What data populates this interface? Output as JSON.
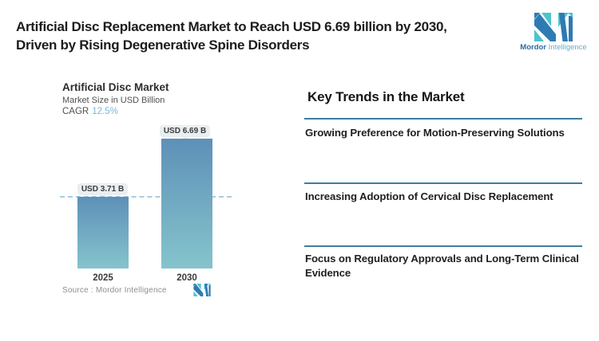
{
  "header": {
    "title_line1": "Artificial Disc Replacement Market to Reach USD 6.69 billion by 2030,",
    "title_line2": "Driven by Rising Degenerative Spine Disorders"
  },
  "logo": {
    "text_primary": "Mordor",
    "text_secondary": "Intelligence",
    "blue": "#2e7bb4",
    "teal": "#4cc3d0"
  },
  "chart": {
    "title": "Artificial Disc Market",
    "subtitle": "Market Size in USD Billion",
    "cagr_label": "CAGR",
    "cagr_value": "12.5%",
    "source": "Source :  Mordor Intelligence"
  },
  "chart_data": {
    "type": "bar",
    "title": "Artificial Disc Market",
    "ylabel": "Market Size in USD Billion",
    "categories": [
      "2025",
      "2030"
    ],
    "values": [
      3.71,
      6.69
    ],
    "value_labels": [
      "USD 3.71 B",
      "USD 6.69 B"
    ],
    "cagr": "12.5%",
    "ylim": [
      0,
      6.69
    ],
    "grid": false,
    "legend": false,
    "baseline_dashed_at": 3.71,
    "bar_gradient_top": "#5e90b8",
    "bar_gradient_bottom": "#85c4cc",
    "dashed_line_color": "#a9cddd",
    "label_pill_bg": "#e9eef1"
  },
  "trends": {
    "heading": "Key Trends in the Market",
    "items": [
      "Growing Preference for Motion-Preserving Solutions",
      "Increasing Adoption of Cervical Disc Replacement",
      "Focus on Regulatory Approvals and Long-Term Clinical Evidence"
    ]
  },
  "colors": {
    "separator": "#3f7d9e",
    "accent_light_blue": "#79b7d6",
    "text_dark": "#1c1c1c"
  }
}
